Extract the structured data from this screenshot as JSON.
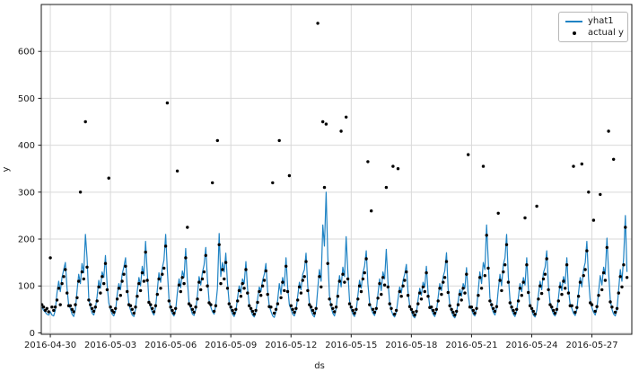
{
  "figure": {
    "xlabel": "ds",
    "ylabel": "y"
  },
  "colors": {
    "line": "#1f83c4",
    "dot": "#000000",
    "grid": "#d9d9d9",
    "spine": "#1a1a1a",
    "text": "#1a1a1a",
    "legend_border": "#b7b7b7",
    "background": "#ffffff"
  },
  "chart_data": {
    "type": "line",
    "title": "",
    "xlabel": "ds",
    "ylabel": "y",
    "grid": true,
    "legend_position": "upper right",
    "x_axis": {
      "origin_date": "2016-04-30",
      "tick_day_offsets": [
        0,
        3,
        6,
        9,
        12,
        15,
        18,
        21,
        24,
        27
      ],
      "tick_labels": [
        "2016-04-30",
        "2016-05-03",
        "2016-05-06",
        "2016-05-09",
        "2016-05-12",
        "2016-05-15",
        "2016-05-18",
        "2016-05-21",
        "2016-05-24",
        "2016-05-27"
      ],
      "xlim_days": [
        -0.45,
        28.99
      ]
    },
    "y_axis": {
      "ticks": [
        0,
        100,
        200,
        300,
        400,
        500,
        600
      ],
      "ylim": [
        -3,
        700
      ]
    },
    "series": [
      {
        "name": "yhat1",
        "type": "line",
        "color": "#1f83c4",
        "x_start_days": -0.4167,
        "x_step_days": 0.083333,
        "values": [
          55,
          48,
          44,
          40,
          38,
          45,
          38,
          36,
          48,
          85,
          110,
          88,
          118,
          135,
          150,
          95,
          60,
          52,
          40,
          35,
          50,
          90,
          125,
          105,
          148,
          128,
          210,
          160,
          75,
          55,
          42,
          38,
          52,
          78,
          112,
          95,
          130,
          118,
          165,
          102,
          64,
          50,
          40,
          36,
          46,
          82,
          105,
          92,
          125,
          140,
          160,
          98,
          62,
          48,
          38,
          35,
          50,
          88,
          118,
          100,
          142,
          122,
          195,
          128,
          70,
          54,
          44,
          38,
          55,
          92,
          128,
          108,
          138,
          155,
          210,
          135,
          72,
          50,
          41,
          36,
          48,
          85,
          115,
          96,
          132,
          118,
          180,
          110,
          66,
          52,
          40,
          37,
          50,
          80,
          120,
          102,
          128,
          145,
          182,
          115,
          68,
          55,
          45,
          40,
          58,
          95,
          212,
          120,
          150,
          130,
          170,
          105,
          65,
          50,
          40,
          35,
          45,
          75,
          100,
          85,
          115,
          105,
          152,
          95,
          60,
          48,
          38,
          34,
          44,
          72,
          98,
          88,
          112,
          125,
          148,
          90,
          58,
          46,
          36,
          33,
          45,
          70,
          105,
          82,
          118,
          100,
          160,
          98,
          60,
          50,
          40,
          36,
          48,
          78,
          108,
          92,
          125,
          135,
          170,
          100,
          62,
          48,
          38,
          34,
          50,
          95,
          135,
          110,
          230,
          185,
          300,
          165,
          80,
          55,
          42,
          36,
          52,
          88,
          122,
          98,
          140,
          120,
          205,
          130,
          68,
          50,
          40,
          35,
          48,
          80,
          112,
          95,
          128,
          142,
          175,
          105,
          64,
          52,
          42,
          37,
          50,
          82,
          115,
          90,
          130,
          115,
          178,
          108,
          65,
          48,
          38,
          34,
          44,
          72,
          98,
          85,
          112,
          125,
          146,
          88,
          58,
          46,
          36,
          32,
          42,
          70,
          95,
          80,
          108,
          98,
          142,
          85,
          56,
          50,
          40,
          35,
          46,
          76,
          105,
          90,
          120,
          132,
          171,
          95,
          60,
          45,
          36,
          32,
          42,
          68,
          92,
          78,
          105,
          95,
          139,
          82,
          55,
          50,
          40,
          36,
          52,
          90,
          130,
          105,
          150,
          135,
          230,
          155,
          75,
          55,
          44,
          38,
          54,
          92,
          125,
          100,
          145,
          160,
          210,
          120,
          70,
          50,
          40,
          35,
          46,
          76,
          105,
          88,
          118,
          102,
          160,
          95,
          60,
          48,
          38,
          34,
          48,
          80,
          110,
          92,
          128,
          140,
          175,
          100,
          62,
          50,
          40,
          36,
          46,
          75,
          108,
          90,
          120,
          105,
          160,
          92,
          60,
          52,
          42,
          37,
          50,
          85,
          118,
          98,
          135,
          150,
          195,
          115,
          68,
          54,
          44,
          38,
          52,
          88,
          122,
          102,
          140,
          125,
          202,
          130,
          70,
          50,
          40,
          36,
          50,
          92,
          135,
          110,
          160,
          250,
          130
        ]
      },
      {
        "name": "actual y",
        "type": "scatter",
        "color": "#000000",
        "x_start_days": -0.4167,
        "x_step_days": 0.083333,
        "values": [
          60,
          55,
          48,
          52,
          45,
          160,
          55,
          48,
          55,
          70,
          95,
          60,
          105,
          120,
          135,
          85,
          58,
          58,
          50,
          45,
          60,
          75,
          110,
          300,
          130,
          115,
          450,
          140,
          70,
          60,
          52,
          46,
          55,
          68,
          98,
          85,
          120,
          105,
          148,
          92,
          330,
          55,
          48,
          44,
          52,
          72,
          95,
          80,
          110,
          125,
          142,
          88,
          60,
          58,
          50,
          42,
          55,
          78,
          105,
          90,
          128,
          110,
          172,
          112,
          65,
          60,
          52,
          45,
          58,
          82,
          115,
          95,
          125,
          138,
          185,
          490,
          68,
          55,
          48,
          42,
          52,
          345,
          102,
          88,
          118,
          105,
          160,
          225,
          62,
          58,
          50,
          44,
          55,
          72,
          108,
          92,
          115,
          130,
          165,
          100,
          64,
          60,
          320,
          46,
          58,
          410,
          188,
          105,
          135,
          115,
          150,
          95,
          62,
          55,
          48,
          42,
          50,
          68,
          90,
          78,
          105,
          95,
          135,
          85,
          58,
          52,
          46,
          40,
          48,
          65,
          88,
          80,
          100,
          112,
          132,
          82,
          56,
          55,
          320,
          42,
          50,
          62,
          410,
          75,
          108,
          90,
          142,
          88,
          335,
          58,
          50,
          44,
          52,
          70,
          98,
          85,
          112,
          120,
          152,
          90,
          60,
          55,
          48,
          42,
          52,
          660,
          120,
          98,
          450,
          310,
          445,
          148,
          72,
          60,
          52,
          45,
          55,
          78,
          110,
          430,
          125,
          108,
          460,
          115,
          62,
          55,
          48,
          42,
          50,
          72,
          100,
          88,
          115,
          128,
          158,
          365,
          60,
          260,
          50,
          44,
          52,
          74,
          105,
          82,
          118,
          102,
          310,
          98,
          62,
          52,
          355,
          40,
          48,
          350,
          88,
          78,
          100,
          112,
          130,
          80,
          56,
          50,
          44,
          38,
          46,
          62,
          85,
          72,
          98,
          88,
          128,
          78,
          54,
          55,
          48,
          42,
          50,
          68,
          95,
          82,
          108,
          118,
          152,
          86,
          58,
          50,
          44,
          38,
          46,
          60,
          82,
          70,
          95,
          85,
          125,
          380,
          55,
          55,
          48,
          42,
          52,
          80,
          118,
          95,
          355,
          122,
          208,
          138,
          68,
          60,
          52,
          46,
          56,
          255,
          112,
          90,
          130,
          145,
          188,
          108,
          64,
          55,
          48,
          42,
          50,
          68,
          95,
          80,
          108,
          245,
          145,
          86,
          58,
          52,
          46,
          40,
          270,
          72,
          100,
          84,
          115,
          125,
          158,
          92,
          60,
          55,
          48,
          42,
          50,
          68,
          98,
          82,
          110,
          95,
          145,
          85,
          58,
          58,
          355,
          44,
          54,
          78,
          108,
          360,
          122,
          135,
          175,
          300,
          64,
          60,
          240,
          46,
          56,
          80,
          295,
          92,
          128,
          112,
          182,
          430,
          66,
          55,
          370,
          44,
          52,
          85,
          120,
          98,
          145,
          225,
          118
        ]
      }
    ]
  }
}
